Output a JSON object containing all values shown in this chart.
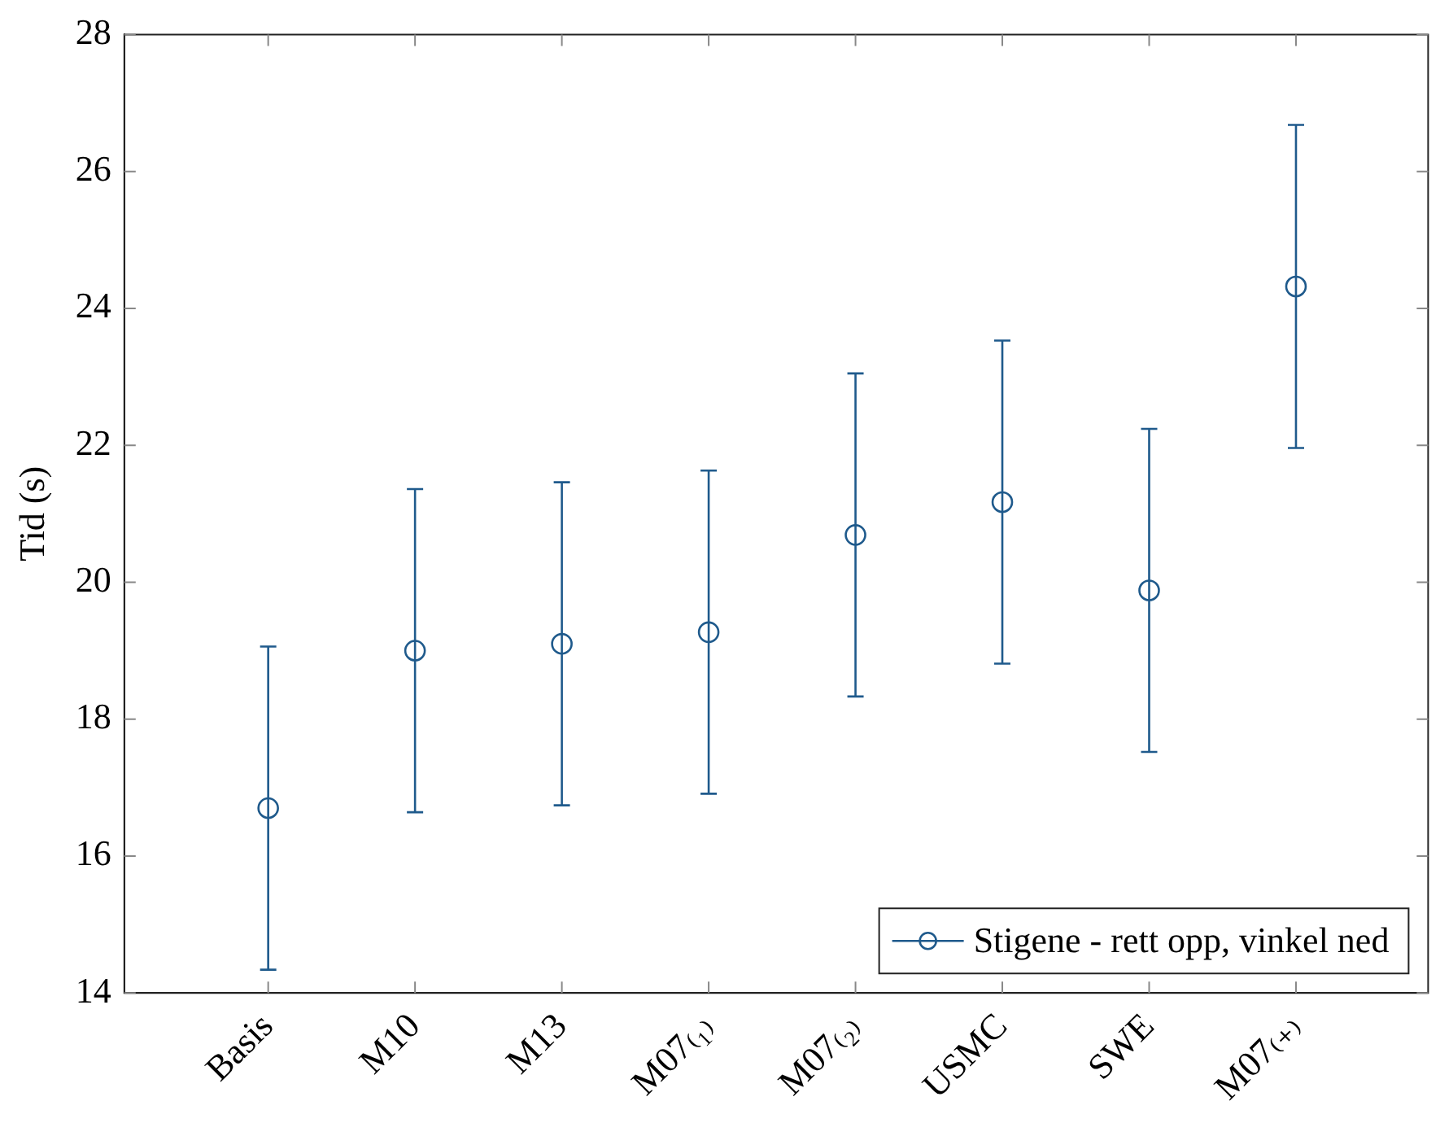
{
  "chart_data": {
    "type": "scatter",
    "ylabel": "Tid (s)",
    "categories": [
      "Basis",
      "M10",
      "M13",
      "M07₍₁₎",
      "M07₍₂₎",
      "USMC",
      "SWE",
      "M07₍₊₎"
    ],
    "series": [
      {
        "name": "Stigene - rett opp, vinkel ned",
        "color": "#1f5a8c",
        "values": [
          16.7,
          19.0,
          19.1,
          19.27,
          20.69,
          21.17,
          19.88,
          24.32
        ],
        "errors": [
          2.36,
          2.36,
          2.36,
          2.36,
          2.36,
          2.36,
          2.36,
          2.36
        ]
      }
    ],
    "ylim": [
      14,
      28
    ],
    "yticks": [
      14,
      16,
      18,
      20,
      22,
      24,
      26,
      28
    ],
    "grid": false,
    "legend": "bottom right",
    "marker": "circle"
  }
}
